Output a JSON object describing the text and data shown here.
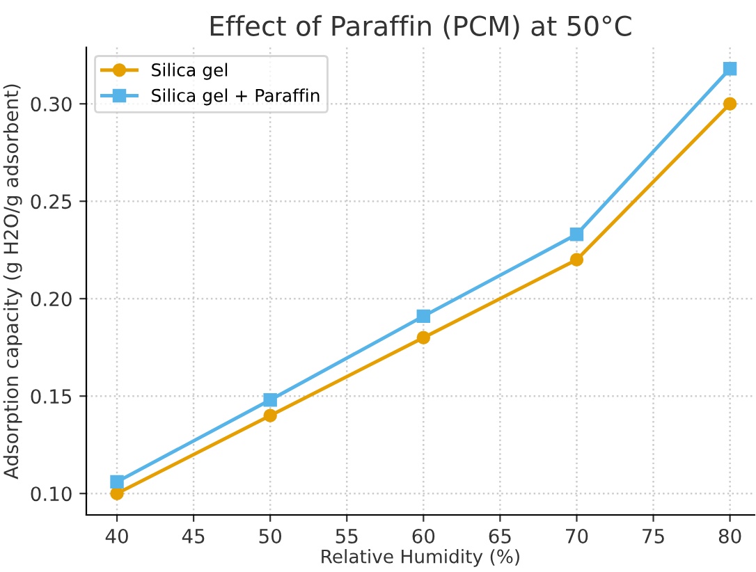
{
  "chart_data": {
    "type": "line",
    "title": "Effect of Paraffin (PCM) at 50°C",
    "xlabel": "Relative Humidity (%)",
    "ylabel": "Adsorption capacity (g H2O/g adsorbent)",
    "x": [
      40,
      50,
      60,
      70,
      80
    ],
    "series": [
      {
        "name": "Silica gel",
        "color": "#e69f00",
        "marker": "circle",
        "values": [
          0.1,
          0.14,
          0.18,
          0.22,
          0.3
        ]
      },
      {
        "name": "Silica gel + Paraffin",
        "color": "#56b4e9",
        "marker": "square",
        "values": [
          0.106,
          0.148,
          0.191,
          0.233,
          0.318
        ]
      }
    ],
    "xlim": [
      38.0,
      81.6
    ],
    "xticks": [
      40,
      45,
      50,
      55,
      60,
      65,
      70,
      75,
      80
    ],
    "ylim": [
      0.089,
      0.329
    ],
    "yticks": [
      {
        "value": 0.1,
        "label": "0.10"
      },
      {
        "value": 0.15,
        "label": "0.15"
      },
      {
        "value": 0.2,
        "label": "0.20"
      },
      {
        "value": 0.25,
        "label": "0.25"
      },
      {
        "value": 0.3,
        "label": "0.30"
      }
    ],
    "grid": true,
    "legend": "top left",
    "line_style": "solid"
  }
}
